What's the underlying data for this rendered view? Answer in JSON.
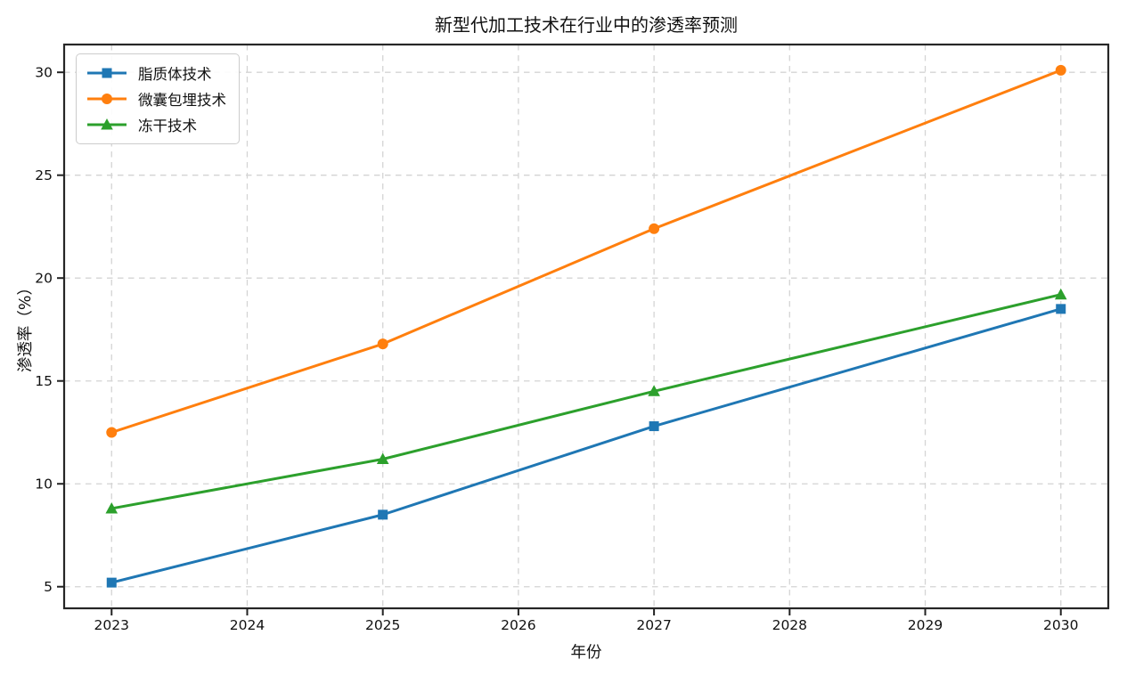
{
  "chart_data": {
    "type": "line",
    "title": "新型代加工技术在行业中的渗透率预测",
    "xlabel": "年份",
    "ylabel": "渗透率（%）",
    "x": [
      2023,
      2025,
      2027,
      2030
    ],
    "series": [
      {
        "name": "脂质体技术",
        "values": [
          5.2,
          8.5,
          12.8,
          18.5
        ],
        "color": "#1f77b4",
        "marker": "square"
      },
      {
        "name": "微囊包埋技术",
        "values": [
          12.5,
          16.8,
          22.4,
          30.1
        ],
        "color": "#ff7f0e",
        "marker": "circle"
      },
      {
        "name": "冻干技术",
        "values": [
          8.8,
          11.2,
          14.5,
          19.2
        ],
        "color": "#2ca02c",
        "marker": "triangle"
      }
    ],
    "xticks": [
      2023,
      2024,
      2025,
      2026,
      2027,
      2028,
      2029,
      2030
    ],
    "yticks": [
      5,
      10,
      15,
      20,
      25,
      30
    ],
    "xlim": [
      2022.65,
      2030.35
    ],
    "ylim": [
      3.95,
      31.35
    ],
    "grid": true,
    "grid_style": "dashed",
    "grid_color": "#d4d4d4",
    "spine_color": "#262626",
    "tick_label_color": "#111111",
    "legend_position": "upper left",
    "line_width": 3
  }
}
